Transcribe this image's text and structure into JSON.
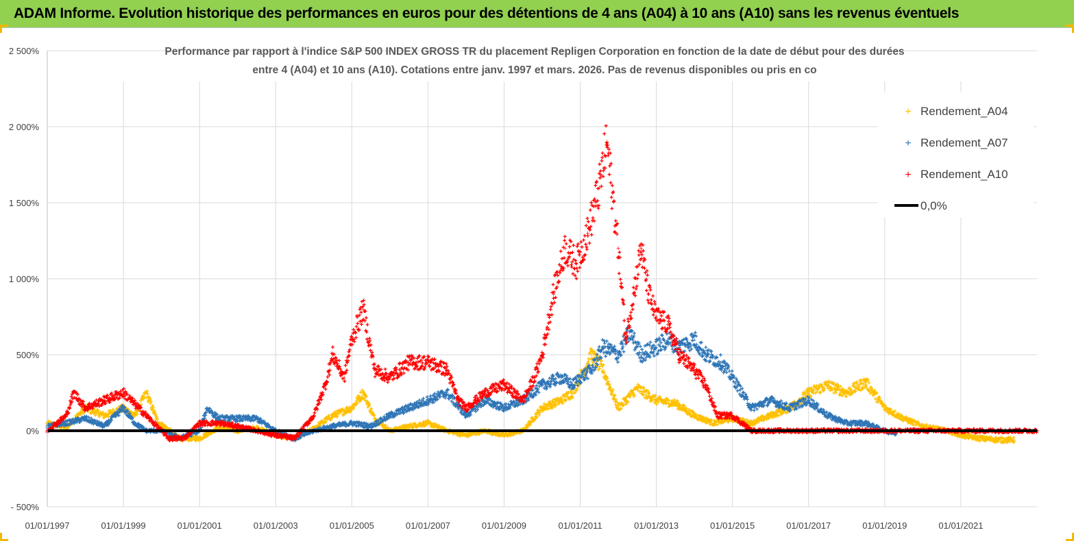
{
  "banner": {
    "title": "ADAM Informe. Evolution historique des performances en euros pour des détentions de 4 ans (A04) à 10 ans (A10) sans les revenus éventuels"
  },
  "colors": {
    "banner_bg": "#92d050",
    "a04": "#ffc000",
    "a07": "#2e75b6",
    "a10": "#ff0000",
    "zero": "#000000",
    "grid": "#d9d9d9",
    "corner": "#f5b800"
  },
  "chart_data": {
    "type": "scatter",
    "title_line1": "Performance par rapport à l'indice S&P 500 INDEX GROSS TR  du placement Repligen Corporation en fonction de la date de début pour des durées",
    "title_line2": "entre 4 (A04) et 10 ans (A10). Cotations entre janv. 1997 et mars. 2026. Pas de revenus disponibles ou pris en co",
    "xlabel": "",
    "ylabel": "",
    "x_range": [
      1997.0,
      2023.0
    ],
    "ylim": [
      -500,
      2500
    ],
    "y_ticks": [
      -500,
      0,
      500,
      1000,
      1500,
      2000,
      2500
    ],
    "y_tick_labels": [
      "- 500%",
      "0%",
      "500%",
      "1 000%",
      "1 500%",
      "2 000%",
      "2 500%"
    ],
    "x_ticks": [
      1997,
      1999,
      2001,
      2003,
      2005,
      2007,
      2009,
      2011,
      2013,
      2015,
      2017,
      2019,
      2021
    ],
    "x_tick_labels": [
      "01/01/1997",
      "01/01/1999",
      "01/01/2001",
      "01/01/2003",
      "01/01/2005",
      "01/01/2007",
      "01/01/2009",
      "01/01/2011",
      "01/01/2013",
      "01/01/2015",
      "01/01/2017",
      "01/01/2019",
      "01/01/2021"
    ],
    "legend": [
      "Rendement_A04",
      "Rendement_A07",
      "Rendement_A10",
      "0,0%"
    ],
    "legend_position": "top-right",
    "series": [
      {
        "name": "Rendement_A04",
        "x": [
          1997.0,
          1997.5,
          1998.0,
          1998.5,
          1999.0,
          1999.3,
          1999.6,
          1999.9,
          2000.5,
          2001.0,
          2001.5,
          2002.0,
          2002.5,
          2003.0,
          2003.5,
          2003.9,
          2004.5,
          2005.0,
          2005.3,
          2005.6,
          2006.0,
          2006.5,
          2007.0,
          2007.5,
          2008.0,
          2008.5,
          2009.0,
          2009.5,
          2010.0,
          2010.5,
          2010.8,
          2011.0,
          2011.3,
          2011.6,
          2012.0,
          2012.5,
          2013.0,
          2013.5,
          2014.0,
          2014.5,
          2015.0,
          2015.5,
          2016.0,
          2016.5,
          2017.0,
          2017.5,
          2018.0,
          2018.5,
          2019.0,
          2019.5,
          2020.0,
          2020.5,
          2021.0,
          2021.5,
          2022.0,
          2022.4
        ],
        "y": [
          50,
          20,
          150,
          100,
          150,
          100,
          250,
          60,
          -50,
          -50,
          20,
          0,
          20,
          -30,
          -50,
          0,
          100,
          150,
          250,
          80,
          0,
          30,
          50,
          0,
          -30,
          0,
          -30,
          0,
          150,
          200,
          250,
          350,
          500,
          400,
          150,
          280,
          200,
          180,
          100,
          50,
          80,
          50,
          100,
          150,
          250,
          300,
          250,
          320,
          150,
          80,
          30,
          10,
          -30,
          -50,
          -60,
          -60
        ]
      },
      {
        "name": "Rendement_A07",
        "x": [
          1997.0,
          1997.5,
          1998.0,
          1998.5,
          1999.0,
          1999.3,
          1999.6,
          2000.0,
          2000.5,
          2001.0,
          2001.2,
          2001.5,
          2002.0,
          2002.5,
          2003.0,
          2003.5,
          2004.0,
          2004.5,
          2005.0,
          2005.5,
          2006.0,
          2006.5,
          2007.0,
          2007.5,
          2008.0,
          2008.5,
          2009.0,
          2009.5,
          2010.0,
          2010.5,
          2010.8,
          2011.0,
          2011.3,
          2011.6,
          2012.0,
          2012.3,
          2012.6,
          2013.0,
          2013.3,
          2013.6,
          2014.0,
          2014.3,
          2014.7,
          2015.0,
          2015.5,
          2016.0,
          2016.5,
          2017.0,
          2017.5,
          2018.0,
          2018.5,
          2019.0,
          2019.3
        ],
        "y": [
          30,
          50,
          80,
          30,
          150,
          50,
          0,
          0,
          -50,
          0,
          150,
          80,
          80,
          80,
          0,
          -50,
          0,
          30,
          50,
          30,
          100,
          150,
          200,
          250,
          100,
          200,
          150,
          200,
          300,
          350,
          300,
          350,
          400,
          550,
          500,
          650,
          500,
          550,
          600,
          550,
          600,
          500,
          450,
          350,
          150,
          200,
          150,
          200,
          100,
          50,
          50,
          0,
          -20
        ]
      },
      {
        "name": "Rendement_A10",
        "x": [
          1997.0,
          1997.5,
          1997.7,
          1998.0,
          1998.5,
          1999.0,
          1999.4,
          1999.8,
          2000.2,
          2000.6,
          2001.0,
          2001.5,
          2002.0,
          2002.5,
          2003.0,
          2003.5,
          2004.0,
          2004.3,
          2004.5,
          2004.8,
          2005.0,
          2005.3,
          2005.6,
          2006.0,
          2006.5,
          2007.0,
          2007.5,
          2007.8,
          2008.0,
          2008.5,
          2009.0,
          2009.5,
          2009.8,
          2010.0,
          2010.3,
          2010.6,
          2010.9,
          2011.2,
          2011.5,
          2011.7,
          2012.0,
          2012.2,
          2012.4,
          2012.6,
          2012.8,
          2013.0,
          2013.3,
          2013.6,
          2014.0,
          2014.3,
          2014.6,
          2015.0,
          2015.5,
          2016.0,
          2016.5,
          2017.0,
          2018.0,
          2019.0,
          2020.0,
          2021.0,
          2022.0,
          2023.0
        ],
        "y": [
          0,
          100,
          250,
          150,
          200,
          250,
          150,
          50,
          -50,
          -50,
          50,
          50,
          30,
          0,
          -30,
          -50,
          100,
          300,
          500,
          350,
          600,
          800,
          400,
          350,
          450,
          450,
          400,
          200,
          150,
          250,
          300,
          200,
          350,
          500,
          900,
          1200,
          1100,
          1300,
          1600,
          1900,
          1200,
          600,
          900,
          1200,
          900,
          750,
          700,
          500,
          400,
          300,
          100,
          100,
          0,
          0,
          0,
          0,
          0,
          0,
          0,
          0,
          0,
          0
        ]
      },
      {
        "name": "0,0%",
        "x": [
          1997.0,
          2023.0
        ],
        "y": [
          0,
          0
        ]
      }
    ]
  }
}
